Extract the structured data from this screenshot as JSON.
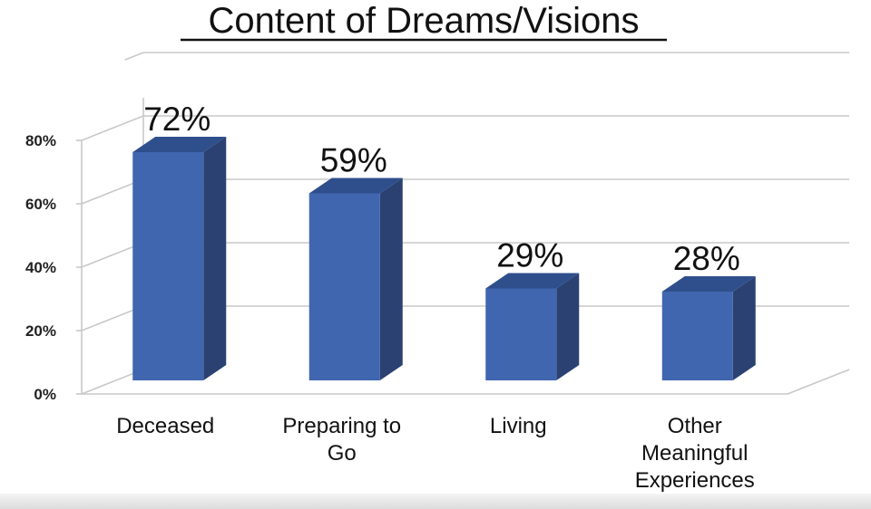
{
  "chart_data": {
    "type": "bar",
    "title": "Content of Dreams/Visions",
    "categories": [
      [
        "Deceased"
      ],
      [
        "Preparing to",
        "Go"
      ],
      [
        "Living"
      ],
      [
        "Other",
        "Meaningful",
        "Experiences"
      ]
    ],
    "values": [
      72,
      59,
      29,
      28
    ],
    "data_labels": [
      "72%",
      "59%",
      "29%",
      "28%"
    ],
    "y_ticks": [
      "0%",
      "20%",
      "40%",
      "60%",
      "80%"
    ],
    "ylim": [
      0,
      80
    ],
    "grid": true,
    "legend": "none",
    "colors": {
      "front": "#4166b0",
      "side": "#2a4171",
      "top": "#2f4f8c",
      "grid": "#c8c8c8"
    }
  }
}
